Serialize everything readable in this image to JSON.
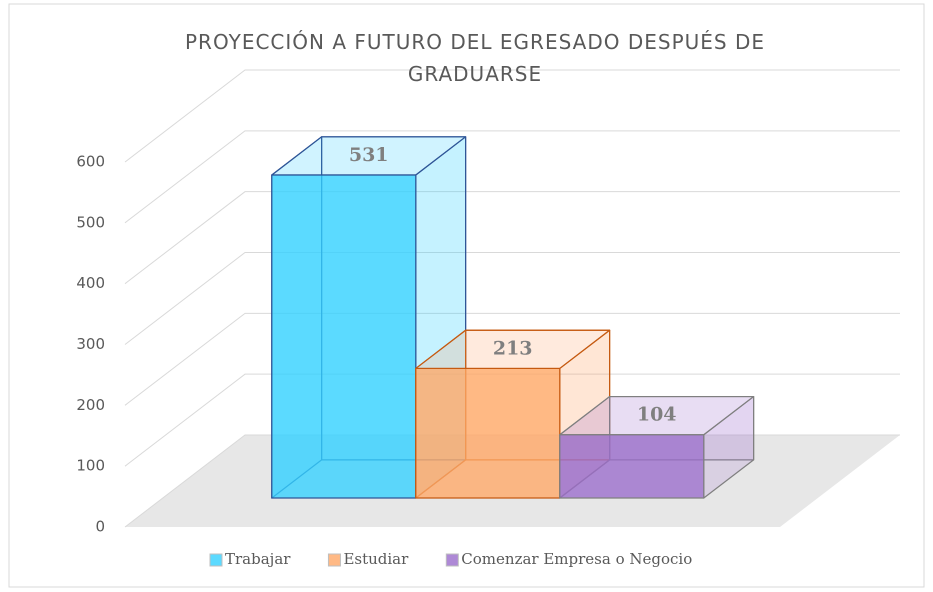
{
  "chart_data": {
    "type": "bar3d",
    "title": "PROYECCIÓN A FUTURO DEL EGRESADO DESPUÉS DE GRADUARSE",
    "categories": [
      null
    ],
    "series": [
      {
        "name": "Trabajar",
        "color": "#33d1ff",
        "values": [
          531
        ]
      },
      {
        "name": "Estudiar",
        "color": "#ffa867",
        "values": [
          213
        ]
      },
      {
        "name": "Comenzar Empresa o Negocio",
        "color": "#9a6bcc",
        "values": [
          104
        ]
      }
    ],
    "ylim": [
      0,
      600
    ],
    "yticks": [
      0,
      100,
      200,
      300,
      400,
      500,
      600
    ],
    "grid": true,
    "legend": "bottom"
  }
}
